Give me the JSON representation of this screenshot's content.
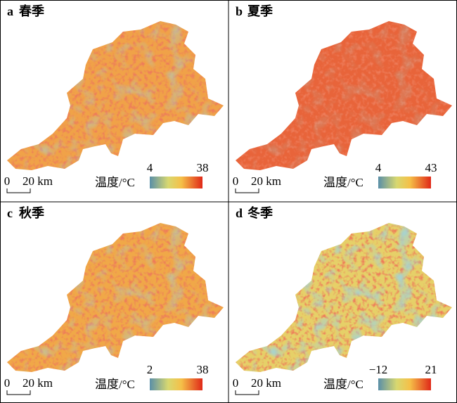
{
  "panels": [
    {
      "label": "a",
      "season": "春季",
      "scale_start": "0",
      "scale_end": "20 km",
      "legend_title": "温度/°C",
      "legend_min": "4",
      "legend_max": "38"
    },
    {
      "label": "b",
      "season": "夏季",
      "scale_start": "0",
      "scale_end": "20 km",
      "legend_title": "温度/°C",
      "legend_min": "4",
      "legend_max": "43"
    },
    {
      "label": "c",
      "season": "秋季",
      "scale_start": "0",
      "scale_end": "20 km",
      "legend_title": "温度/°C",
      "legend_min": "2",
      "legend_max": "38"
    },
    {
      "label": "d",
      "season": "冬季",
      "scale_start": "0",
      "scale_end": "20 km",
      "legend_title": "温度/°C",
      "legend_min": "−12",
      "legend_max": "21"
    }
  ]
}
